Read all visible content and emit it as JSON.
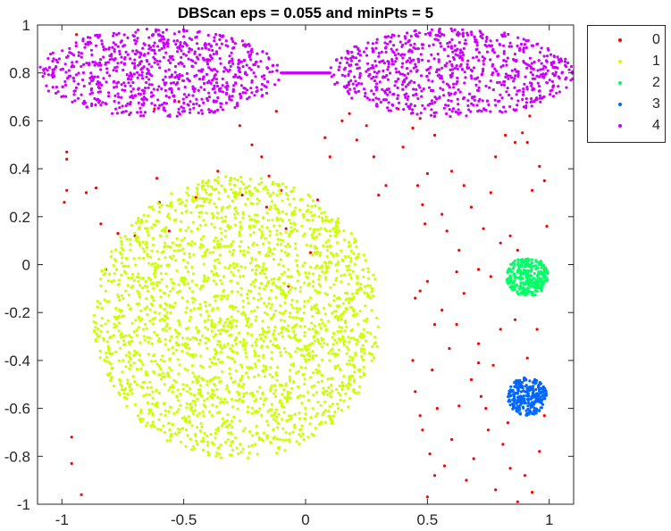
{
  "chart_data": {
    "type": "scatter",
    "title": "DBScan eps = 0.055 and minPts = 5",
    "xlabel": "",
    "ylabel": "",
    "xlim": [
      -1.1,
      1.1
    ],
    "ylim": [
      -1,
      1
    ],
    "xticks": [
      -1,
      -0.5,
      0,
      0.5,
      1
    ],
    "xtick_labels": [
      "-1",
      "-0.5",
      "0",
      "0.5",
      "1"
    ],
    "yticks": [
      1,
      0.8,
      0.6,
      0.4,
      0.2,
      0,
      -0.2,
      -0.4,
      -0.6,
      -0.8,
      -1
    ],
    "ytick_labels": [
      "1",
      "0.8",
      "0.6",
      "0.4",
      "0.2",
      "0",
      "-0.2",
      "-0.4",
      "-0.6",
      "-0.8",
      "-1"
    ],
    "grid": false,
    "legend_position": "outside-top-right",
    "series": [
      {
        "name": "0",
        "color": "#ff0000",
        "points": [
          [
            -0.99,
            0.26
          ],
          [
            -0.98,
            0.47
          ],
          [
            -0.98,
            0.44
          ],
          [
            -0.98,
            0.31
          ],
          [
            -0.96,
            -0.72
          ],
          [
            -0.96,
            -0.83
          ],
          [
            -0.94,
            0.96
          ],
          [
            -0.92,
            -0.96
          ],
          [
            -0.9,
            0.3
          ],
          [
            -0.86,
            0.32
          ],
          [
            -0.84,
            0.17
          ],
          [
            -0.82,
            -0.02
          ],
          [
            -0.77,
            0.13
          ],
          [
            -0.7,
            0.12
          ],
          [
            -0.62,
            0.65
          ],
          [
            -0.61,
            0.36
          ],
          [
            -0.6,
            0.26
          ],
          [
            -0.56,
            0.14
          ],
          [
            -0.52,
            0.68
          ],
          [
            -0.45,
            0.28
          ],
          [
            -0.36,
            0.39
          ],
          [
            -0.27,
            0.58
          ],
          [
            -0.26,
            0.29
          ],
          [
            -0.22,
            0.5
          ],
          [
            -0.18,
            0.45
          ],
          [
            -0.16,
            0.24
          ],
          [
            -0.15,
            0.37
          ],
          [
            -0.12,
            0.64
          ],
          [
            -0.1,
            0.31
          ],
          [
            -0.08,
            0.15
          ],
          [
            -0.07,
            -0.09
          ],
          [
            0.02,
            0.05
          ],
          [
            0.05,
            0.27
          ],
          [
            0.08,
            0.53
          ],
          [
            0.1,
            0.45
          ],
          [
            0.15,
            0.6
          ],
          [
            0.18,
            0.63
          ],
          [
            0.21,
            0.52
          ],
          [
            0.25,
            0.58
          ],
          [
            0.28,
            0.45
          ],
          [
            0.3,
            0.29
          ],
          [
            0.33,
            0.33
          ],
          [
            0.38,
            0.65
          ],
          [
            0.4,
            0.49
          ],
          [
            0.44,
            0.57
          ],
          [
            0.47,
            0.61
          ],
          [
            0.48,
            0.25
          ],
          [
            0.46,
            0.33
          ],
          [
            0.49,
            0.17
          ],
          [
            0.5,
            0.38
          ],
          [
            0.53,
            0.54
          ],
          [
            0.56,
            0.21
          ],
          [
            0.58,
            0.14
          ],
          [
            0.6,
            0.39
          ],
          [
            0.63,
            0.06
          ],
          [
            0.65,
            0.33
          ],
          [
            0.68,
            0.24
          ],
          [
            0.71,
            -0.02
          ],
          [
            0.73,
            0.15
          ],
          [
            0.76,
            0.3
          ],
          [
            0.78,
            0.45
          ],
          [
            0.8,
            0.09
          ],
          [
            0.82,
            0.54
          ],
          [
            0.84,
            0.12
          ],
          [
            0.86,
            0.51
          ],
          [
            0.89,
            0.55
          ],
          [
            0.91,
            0.51
          ],
          [
            0.93,
            0.31
          ],
          [
            0.96,
            0.41
          ],
          [
            0.98,
            0.35
          ],
          [
            0.99,
            0.16
          ],
          [
            0.47,
            -0.11
          ],
          [
            0.5,
            -0.07
          ],
          [
            0.53,
            -0.25
          ],
          [
            0.56,
            -0.19
          ],
          [
            0.59,
            -0.35
          ],
          [
            0.62,
            -0.03
          ],
          [
            0.65,
            -0.12
          ],
          [
            0.68,
            -0.48
          ],
          [
            0.71,
            -0.33
          ],
          [
            0.74,
            -0.6
          ],
          [
            0.77,
            -0.42
          ],
          [
            0.8,
            -0.27
          ],
          [
            0.83,
            -0.66
          ],
          [
            0.44,
            -0.4
          ],
          [
            0.45,
            -0.53
          ],
          [
            0.48,
            -0.69
          ],
          [
            0.51,
            -0.79
          ],
          [
            0.54,
            -0.6
          ],
          [
            0.57,
            -0.84
          ],
          [
            0.6,
            -0.73
          ],
          [
            0.63,
            -0.59
          ],
          [
            0.66,
            -0.9
          ],
          [
            0.69,
            -0.81
          ],
          [
            0.72,
            -0.55
          ],
          [
            0.75,
            -0.69
          ],
          [
            0.78,
            -0.94
          ],
          [
            0.81,
            -0.75
          ],
          [
            0.84,
            -0.85
          ],
          [
            0.87,
            -0.99
          ],
          [
            0.9,
            -0.88
          ],
          [
            0.93,
            -0.95
          ],
          [
            0.96,
            -0.78
          ],
          [
            0.98,
            -0.63
          ],
          [
            0.5,
            -0.97
          ],
          [
            0.53,
            -0.88
          ],
          [
            0.47,
            -0.63
          ],
          [
            0.71,
            -0.41
          ],
          [
            0.86,
            -0.23
          ],
          [
            0.91,
            -0.39
          ],
          [
            0.76,
            -0.05
          ],
          [
            0.62,
            -0.25
          ],
          [
            0.92,
            0.62
          ],
          [
            0.87,
            0.06
          ],
          [
            0.95,
            -0.27
          ],
          [
            0.98,
            -0.02
          ],
          [
            0.45,
            -0.14
          ],
          [
            0.52,
            -0.44
          ]
        ]
      },
      {
        "name": "1",
        "color": "#ccff00",
        "disc": {
          "cx": -0.28,
          "cy": -0.22,
          "r": 0.59,
          "count": 2300
        }
      },
      {
        "name": "2",
        "color": "#00ff66",
        "disc": {
          "cx": 0.91,
          "cy": -0.05,
          "r": 0.085,
          "count": 260
        }
      },
      {
        "name": "3",
        "color": "#0066ff",
        "disc": {
          "cx": 0.91,
          "cy": -0.55,
          "r": 0.08,
          "count": 260
        }
      },
      {
        "name": "4",
        "color": "#cc00ff",
        "ellipses": [
          {
            "cx": -0.6,
            "cy": 0.8,
            "rx": 0.5,
            "ry": 0.185,
            "count": 800
          },
          {
            "cx": 0.6,
            "cy": 0.8,
            "rx": 0.5,
            "ry": 0.185,
            "count": 800
          }
        ],
        "bridge": {
          "x1": -0.1,
          "x2": 0.1,
          "y": 0.8
        }
      }
    ]
  },
  "legend": {
    "items": [
      {
        "label": "0",
        "color": "#ff0000"
      },
      {
        "label": "1",
        "color": "#ccff00"
      },
      {
        "label": "2",
        "color": "#00ff66"
      },
      {
        "label": "3",
        "color": "#0066ff"
      },
      {
        "label": "4",
        "color": "#cc00ff"
      }
    ]
  }
}
